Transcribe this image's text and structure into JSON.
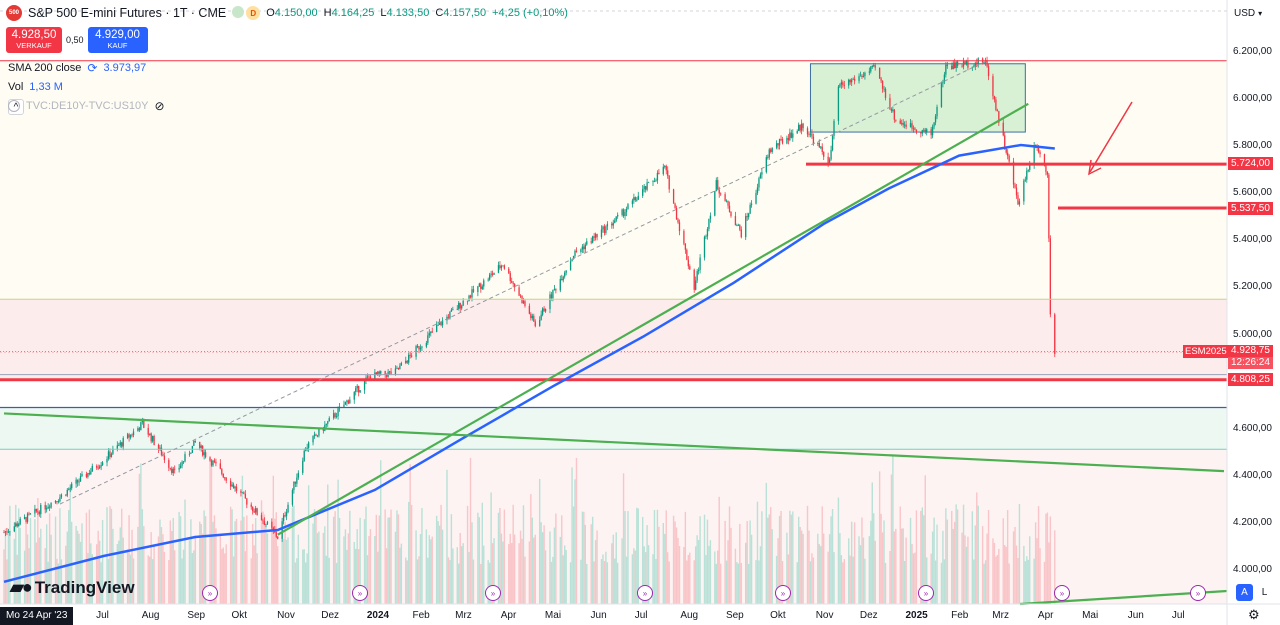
{
  "header": {
    "symbol_badge": "500",
    "title": "S&P 500 E-mini Futures · 1T · CME",
    "status_d": "D",
    "ohlc": [
      {
        "k": "O",
        "v": "4.150,00"
      },
      {
        "k": "H",
        "v": "4.164,25"
      },
      {
        "k": "L",
        "v": "4.133,50"
      },
      {
        "k": "C",
        "v": "4.157,50"
      },
      {
        "k": "",
        "v": "+4,25 (+0,10%)"
      }
    ],
    "colors": {
      "up": "#089981",
      "down": "#f23645",
      "accent": "#2962ff"
    }
  },
  "trade": {
    "sell_price": "4.928,50",
    "sell_label": "VERKAUF",
    "spread": "0,50",
    "buy_price": "4.929,00",
    "buy_label": "KAUF"
  },
  "indicators": {
    "sma_label": "SMA 200 close",
    "sma_value": "3.973,97",
    "vol_label": "Vol",
    "vol_value": "1,33 M",
    "tvc_label": "TVC:DE10Y-TVC:US10Y"
  },
  "currency": "USD",
  "price_axis": {
    "ticks": [
      "6.200,00",
      "6.000,00",
      "5.800,00",
      "5.600,00",
      "5.400,00",
      "5.200,00",
      "5.000,00",
      "4.800,00",
      "4.600,00",
      "4.400,00",
      "4.200,00",
      "4.000,00"
    ],
    "tags": {
      "level_5724": "5.724,00",
      "level_5537": "5.537,50",
      "current": "4.928,75",
      "countdown": "12:26:24",
      "level_4808": "4.808,25",
      "esm": "ESM2025"
    }
  },
  "time_axis": {
    "start_badge": "Mo 24 Apr '23",
    "labels": [
      "Jul",
      "Aug",
      "Sep",
      "Okt",
      "Nov",
      "Dez",
      "2024",
      "Feb",
      "Mrz",
      "Apr",
      "Mai",
      "Jun",
      "Jul",
      "Aug",
      "Sep",
      "Okt",
      "Nov",
      "Dez",
      "2025",
      "Feb",
      "Mrz",
      "Apr",
      "Mai",
      "Jun",
      "Jul"
    ]
  },
  "branding": {
    "logo_text": "TradingView"
  },
  "scale_buttons": {
    "auto": "A",
    "log": "L"
  },
  "chart_data": {
    "type": "candlestick",
    "title": "S&P 500 E-mini Futures",
    "timeframe": "1T",
    "ylim": [
      3880,
      6310
    ],
    "x_range": [
      "2023-04-24",
      "2025-07-31"
    ],
    "anchors": [
      [
        "2023-04-24",
        4160
      ],
      [
        "2023-06-01",
        4310
      ],
      [
        "2023-07-01",
        4470
      ],
      [
        "2023-07-27",
        4620
      ],
      [
        "2023-08-18",
        4410
      ],
      [
        "2023-09-01",
        4540
      ],
      [
        "2023-09-25",
        4370
      ],
      [
        "2023-10-27",
        4140
      ],
      [
        "2023-11-15",
        4520
      ],
      [
        "2023-12-28",
        4820
      ],
      [
        "2024-01-15",
        4840
      ],
      [
        "2024-02-15",
        5050
      ],
      [
        "2024-03-28",
        5300
      ],
      [
        "2024-04-19",
        5040
      ],
      [
        "2024-05-15",
        5340
      ],
      [
        "2024-06-15",
        5500
      ],
      [
        "2024-07-16",
        5710
      ],
      [
        "2024-08-05",
        5200
      ],
      [
        "2024-08-20",
        5640
      ],
      [
        "2024-09-06",
        5430
      ],
      [
        "2024-09-25",
        5780
      ],
      [
        "2024-10-18",
        5890
      ],
      [
        "2024-11-05",
        5730
      ],
      [
        "2024-11-11",
        6050
      ],
      [
        "2024-12-06",
        6130
      ],
      [
        "2024-12-20",
        5910
      ],
      [
        "2025-01-13",
        5850
      ],
      [
        "2025-01-23",
        6140
      ],
      [
        "2025-02-19",
        6160
      ],
      [
        "2025-03-13",
        5560
      ],
      [
        "2025-03-25",
        5820
      ],
      [
        "2025-04-02",
        5680
      ],
      [
        "2025-04-03",
        5420
      ],
      [
        "2025-04-04",
        5100
      ],
      [
        "2025-04-07",
        4928.75
      ]
    ],
    "sma200": [
      [
        "2023-04-24",
        3950
      ],
      [
        "2023-07-01",
        4060
      ],
      [
        "2023-09-01",
        4140
      ],
      [
        "2023-10-27",
        4170
      ],
      [
        "2024-01-01",
        4340
      ],
      [
        "2024-03-01",
        4560
      ],
      [
        "2024-05-01",
        4780
      ],
      [
        "2024-07-01",
        4990
      ],
      [
        "2024-09-01",
        5220
      ],
      [
        "2024-11-01",
        5470
      ],
      [
        "2024-12-15",
        5620
      ],
      [
        "2025-02-01",
        5760
      ],
      [
        "2025-03-15",
        5805
      ],
      [
        "2025-04-07",
        5790
      ]
    ],
    "horizontal_levels": [
      6163,
      5724,
      5537.5,
      5150,
      4925,
      4830,
      4808.25,
      4690,
      4513
    ],
    "trendlines": [
      {
        "from": [
          "2023-10-27",
          4150
        ],
        "to": [
          "2025-03-20",
          5980
        ]
      },
      {
        "from": [
          "2023-04-24",
          4665
        ],
        "to": [
          "2025-07-31",
          4420
        ]
      }
    ],
    "rectangle": {
      "from": [
        "2024-10-23",
        5860
      ],
      "to": [
        "2025-03-18",
        6150
      ]
    },
    "dashed_trend": {
      "from": [
        "2023-06-01",
        4280
      ],
      "to": [
        "2025-02-19",
        6160
      ]
    },
    "current_price": 4928.75
  }
}
